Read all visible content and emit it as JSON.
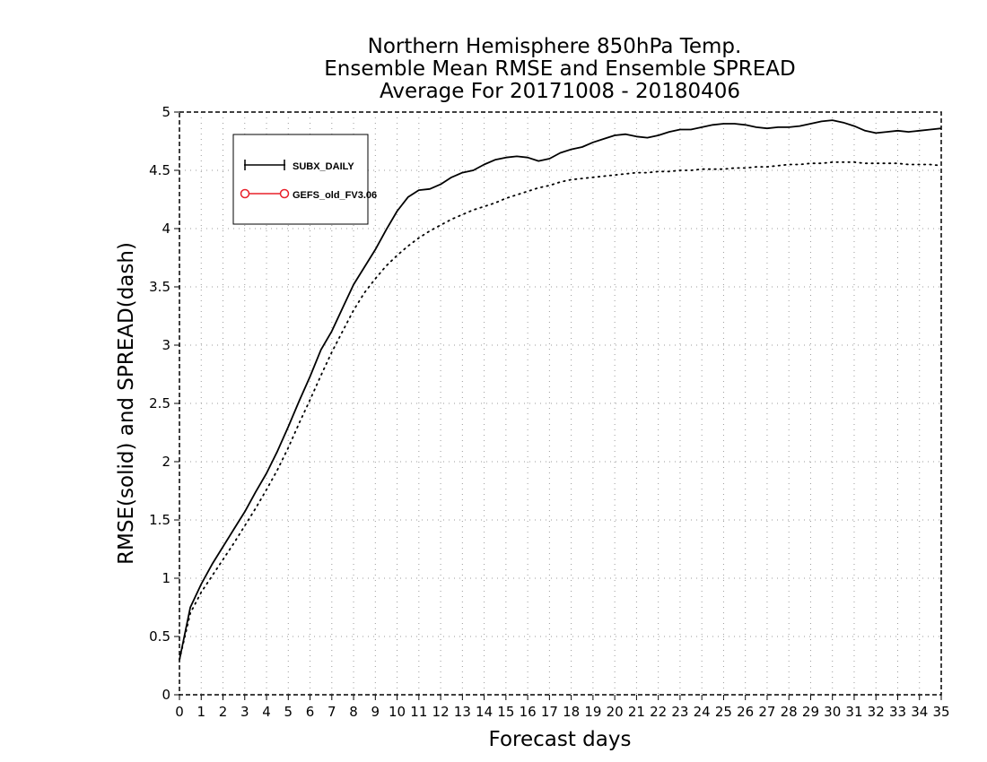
{
  "chart_data": {
    "type": "line",
    "title": [
      "Northern Hemisphere 850hPa Temp.",
      "Ensemble Mean RMSE and Ensemble SPREAD",
      "Average For 20171008 - 20180406"
    ],
    "xlabel": "Forecast days",
    "ylabel": "RMSE(solid) and SPREAD(dash)",
    "xlim": [
      0,
      35
    ],
    "ylim": [
      0,
      5
    ],
    "xticks": [
      "0",
      "1",
      "2",
      "3",
      "4",
      "5",
      "6",
      "7",
      "8",
      "9",
      "10",
      "11",
      "12",
      "13",
      "14",
      "15",
      "16",
      "17",
      "18",
      "19",
      "20",
      "21",
      "22",
      "23",
      "24",
      "25",
      "26",
      "27",
      "28",
      "29",
      "30",
      "31",
      "32",
      "33",
      "34",
      "35"
    ],
    "yticks": [
      "0",
      "0.5",
      "1",
      "1.5",
      "2",
      "2.5",
      "3",
      "3.5",
      "4",
      "4.5",
      "5"
    ],
    "grid": true,
    "legend": {
      "position": "top-left",
      "entries": [
        {
          "label": "SUBX_DAILY",
          "color": "#000000",
          "marker": "plus"
        },
        {
          "label": "GEFS_old_FV3.06",
          "color": "#e8202a",
          "marker": "circle"
        }
      ]
    },
    "series": [
      {
        "name": "SUBX_DAILY",
        "style": "solid",
        "color": "#000000",
        "x": [
          0,
          0.5,
          1,
          1.5,
          2,
          2.5,
          3,
          3.5,
          4,
          4.5,
          5,
          5.5,
          6,
          6.5,
          7,
          7.5,
          8,
          8.5,
          9,
          9.5,
          10,
          10.5,
          11,
          11.5,
          12,
          12.5,
          13,
          13.5,
          14,
          14.5,
          15,
          15.5,
          16,
          16.5,
          17,
          17.5,
          18,
          18.5,
          19,
          19.5,
          20,
          20.5,
          21,
          21.5,
          22,
          22.5,
          23,
          23.5,
          24,
          24.5,
          25,
          25.5,
          26,
          26.5,
          27,
          27.5,
          28,
          28.5,
          29,
          29.5,
          30,
          30.5,
          31,
          31.5,
          32,
          32.5,
          33,
          33.5,
          34,
          34.5,
          35
        ],
        "values": [
          0.3,
          0.75,
          0.95,
          1.12,
          1.27,
          1.42,
          1.57,
          1.74,
          1.9,
          2.09,
          2.3,
          2.52,
          2.73,
          2.96,
          3.12,
          3.32,
          3.52,
          3.67,
          3.82,
          3.99,
          4.15,
          4.27,
          4.33,
          4.34,
          4.38,
          4.44,
          4.48,
          4.5,
          4.55,
          4.59,
          4.61,
          4.62,
          4.61,
          4.58,
          4.6,
          4.65,
          4.68,
          4.7,
          4.74,
          4.77,
          4.8,
          4.81,
          4.79,
          4.78,
          4.8,
          4.83,
          4.85,
          4.85,
          4.87,
          4.89,
          4.9,
          4.9,
          4.89,
          4.87,
          4.86,
          4.87,
          4.87,
          4.88,
          4.9,
          4.92,
          4.93,
          4.91,
          4.88,
          4.84,
          4.82,
          4.83,
          4.84,
          4.83,
          4.84,
          4.85,
          4.86
        ]
      },
      {
        "name": "SUBX_DAILY",
        "style": "dash",
        "color": "#000000",
        "x": [
          0,
          0.5,
          1,
          1.5,
          2,
          2.5,
          3,
          3.5,
          4,
          4.5,
          5,
          5.5,
          6,
          6.5,
          7,
          7.5,
          8,
          8.5,
          9,
          9.5,
          10,
          10.5,
          11,
          11.5,
          12,
          12.5,
          13,
          13.5,
          14,
          14.5,
          15,
          15.5,
          16,
          16.5,
          17,
          17.5,
          18,
          18.5,
          19,
          19.5,
          20,
          20.5,
          21,
          21.5,
          22,
          22.5,
          23,
          23.5,
          24,
          24.5,
          25,
          25.5,
          26,
          26.5,
          27,
          27.5,
          28,
          28.5,
          29,
          29.5,
          30,
          30.5,
          31,
          31.5,
          32,
          32.5,
          33,
          33.5,
          34,
          34.5,
          35
        ],
        "values": [
          0.3,
          0.7,
          0.88,
          1.02,
          1.16,
          1.3,
          1.45,
          1.6,
          1.76,
          1.93,
          2.12,
          2.33,
          2.53,
          2.74,
          2.94,
          3.12,
          3.3,
          3.45,
          3.57,
          3.68,
          3.77,
          3.85,
          3.92,
          3.98,
          4.03,
          4.08,
          4.12,
          4.16,
          4.19,
          4.22,
          4.26,
          4.29,
          4.32,
          4.35,
          4.37,
          4.4,
          4.42,
          4.43,
          4.44,
          4.45,
          4.46,
          4.47,
          4.48,
          4.48,
          4.49,
          4.49,
          4.5,
          4.5,
          4.51,
          4.51,
          4.51,
          4.52,
          4.52,
          4.53,
          4.53,
          4.54,
          4.55,
          4.55,
          4.56,
          4.56,
          4.57,
          4.57,
          4.57,
          4.56,
          4.56,
          4.56,
          4.56,
          4.55,
          4.55,
          4.55,
          4.54
        ]
      }
    ]
  }
}
